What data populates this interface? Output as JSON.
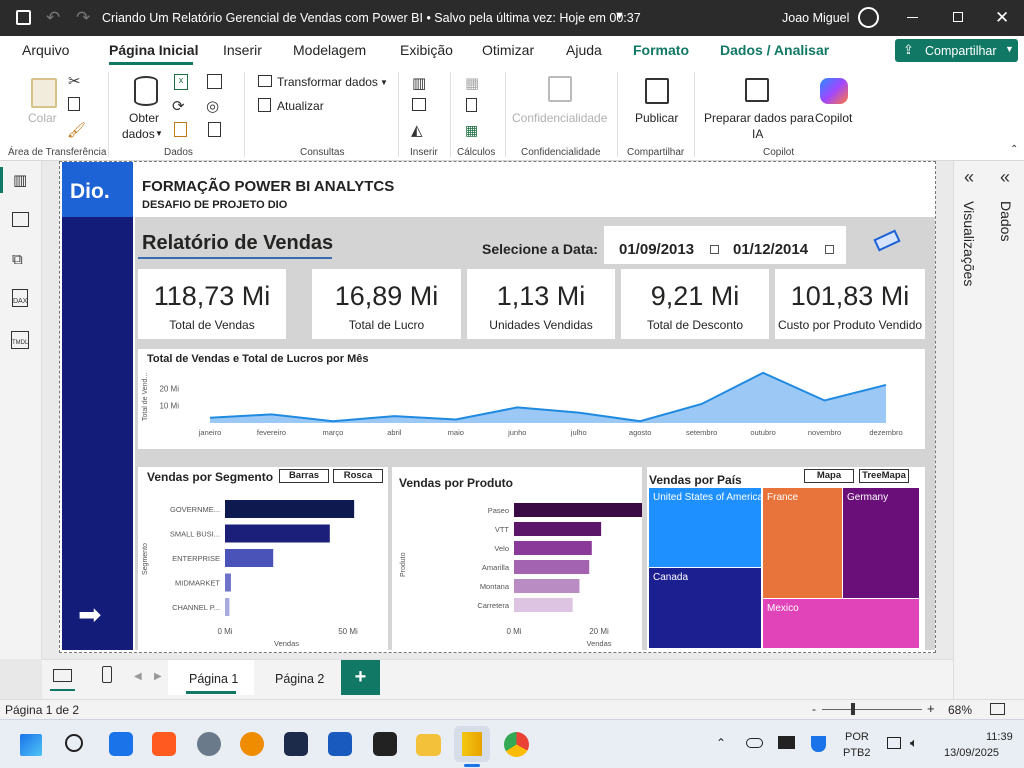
{
  "titlebar": {
    "title": "Criando Um Relatório Gerencial de Vendas com Power BI • Salvo pela última vez: Hoje em 00:37",
    "user": "Joao Miguel"
  },
  "ribbon_tabs": [
    "Arquivo",
    "Página Inicial",
    "Inserir",
    "Modelagem",
    "Exibição",
    "Otimizar",
    "Ajuda",
    "Formato",
    "Dados / Analisar"
  ],
  "share_label": "Compartilhar",
  "ribbon": {
    "colar": "Colar",
    "area_transferencia": "Área de Transferência",
    "obter_dados_1": "Obter",
    "obter_dados_2": "dados",
    "dados": "Dados",
    "transformar": "Transformar dados",
    "atualizar": "Atualizar",
    "consultas": "Consultas",
    "inserir": "Inserir",
    "calculos": "Cálculos",
    "confidencialidade_btn": "Confidencialidade",
    "confidencialidade": "Confidencialidade",
    "publicar": "Publicar",
    "compartilhar": "Compartilhar",
    "preparar_1": "Preparar dados para",
    "preparar_2": "IA",
    "copilot_btn": "Copilot",
    "copilot": "Copilot"
  },
  "right_pane": {
    "visualizacoes": "Visualizações",
    "dados": "Dados"
  },
  "report": {
    "logo": "Dio.",
    "header_title": "FORMAÇÃO POWER BI ANALYTCS",
    "header_subtitle": "DESAFIO DE PROJETO DIO",
    "report_title": "Relatório de Vendas",
    "date_label": "Selecione a Data:",
    "date_start": "01/09/2013",
    "date_end": "01/12/2014",
    "kpis": [
      {
        "value": "118,73 Mi",
        "label": "Total de Vendas"
      },
      {
        "value": "16,89 Mi",
        "label": "Total de Lucro"
      },
      {
        "value": "1,13 Mi",
        "label": "Unidades Vendidas"
      },
      {
        "value": "9,21 Mi",
        "label": "Total de Desconto"
      },
      {
        "value": "101,83 Mi",
        "label": "Custo por Produto Vendido"
      }
    ],
    "seg_buttons": [
      "Barras",
      "Rosca"
    ],
    "map_buttons": [
      "Mapa",
      "TreeMapa"
    ]
  },
  "chart_data": [
    {
      "type": "area",
      "title": "Total de Vendas e Total de Lucros por Mês",
      "ylabel": "Total de Vend...",
      "yticks": [
        "10 Mi",
        "20 Mi"
      ],
      "ylim": [
        0,
        26
      ],
      "categories": [
        "janeiro",
        "fevereiro",
        "março",
        "abril",
        "maio",
        "junho",
        "julho",
        "agosto",
        "setembro",
        "outubro",
        "novembro",
        "dezembro"
      ],
      "series": [
        {
          "values": [
            3,
            5,
            1,
            4,
            2,
            9,
            6,
            1,
            11,
            29,
            13,
            22
          ]
        }
      ]
    },
    {
      "type": "bar",
      "title": "Vendas por Segmento",
      "ylabel": "Segmento",
      "xlabel": "Vendas",
      "xticks": [
        "0 Mi",
        "50 Mi"
      ],
      "xlim": [
        0,
        50
      ],
      "categories": [
        "GOVERNME...",
        "SMALL BUSI...",
        "ENTERPRISE",
        "MIDMARKET",
        "CHANNEL P..."
      ],
      "values": [
        52.5,
        42.6,
        19.6,
        2.4,
        1.8
      ],
      "colors": [
        "#0e1a4f",
        "#1b1f7a",
        "#4a53b8",
        "#6d72c9",
        "#a7abe0"
      ]
    },
    {
      "type": "bar",
      "title": "Vendas por Produto",
      "ylabel": "Produto",
      "xlabel": "Vendas",
      "xticks": [
        "0 Mi",
        "20 Mi",
        "40 Mi"
      ],
      "xlim": [
        0,
        40
      ],
      "categories": [
        "Paseo",
        "VTT",
        "Velo",
        "Amarilla",
        "Montana",
        "Carretera"
      ],
      "values": [
        33.0,
        20.5,
        18.3,
        17.7,
        15.4,
        13.8
      ],
      "colors": [
        "#3a0a45",
        "#5c1669",
        "#8a3a98",
        "#a463b0",
        "#b98cc3",
        "#dcc4e2"
      ]
    },
    {
      "type": "treemap",
      "title": "Vendas por País",
      "categories": [
        "United States of America",
        "Canada",
        "France",
        "Germany",
        "Mexico"
      ],
      "colors": [
        "#1e90ff",
        "#1b1f8f",
        "#e8743b",
        "#6a0f7a",
        "#e044b8"
      ]
    }
  ],
  "pages": {
    "p1": "Página 1",
    "p2": "Página 2",
    "add": "+"
  },
  "status": {
    "page_info": "Página 1 de 2",
    "zoom": "68%"
  },
  "taskbar": {
    "lang1": "POR",
    "lang2": "PTB2",
    "time": "11:39",
    "date": "13/09/2025"
  }
}
